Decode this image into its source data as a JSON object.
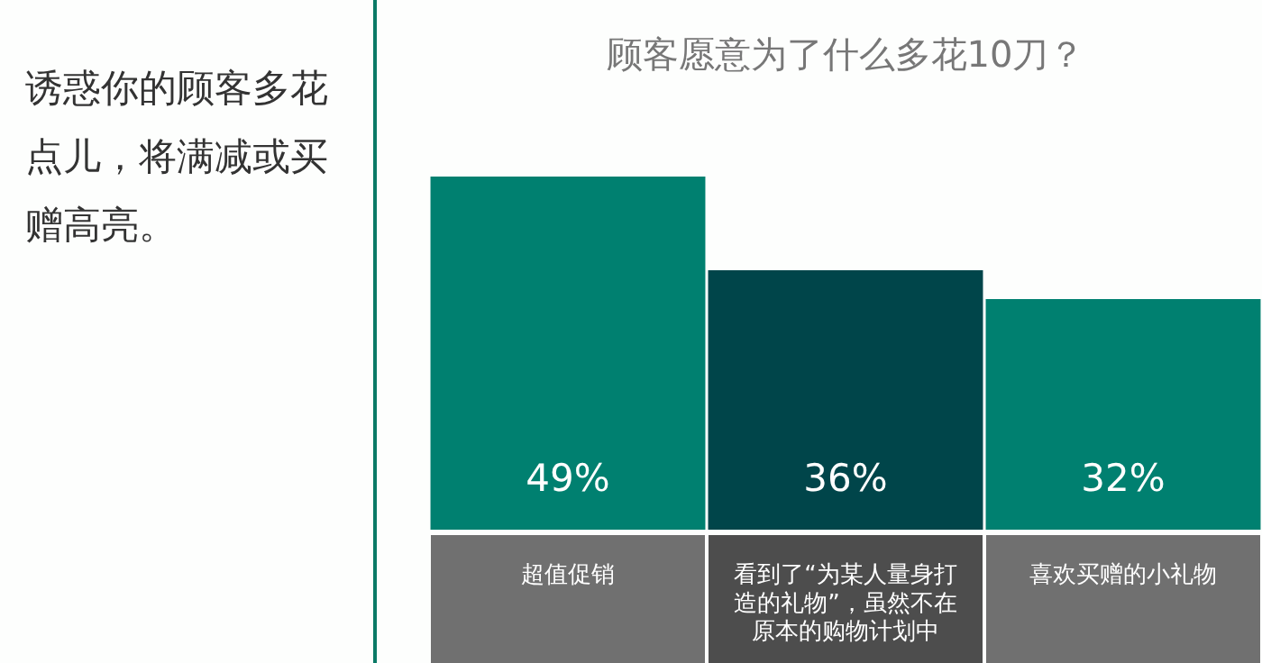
{
  "chart_data": {
    "type": "bar",
    "title": "顾客愿意为了什么多花10刀？",
    "categories": [
      "超值促销",
      "看到了“为某人量身打造的礼物”，虽然不在原本的购物计划中",
      "喜欢买赠的小礼物"
    ],
    "values": [
      49,
      36,
      32
    ],
    "colors": [
      "#008070",
      "#00454a",
      "#008070"
    ],
    "value_labels": [
      "49%",
      "36%",
      "32%"
    ],
    "annotations": [
      "诱惑你的顾客多花点儿，将满减或买赠高亮。"
    ],
    "grid": false,
    "legend": false
  }
}
